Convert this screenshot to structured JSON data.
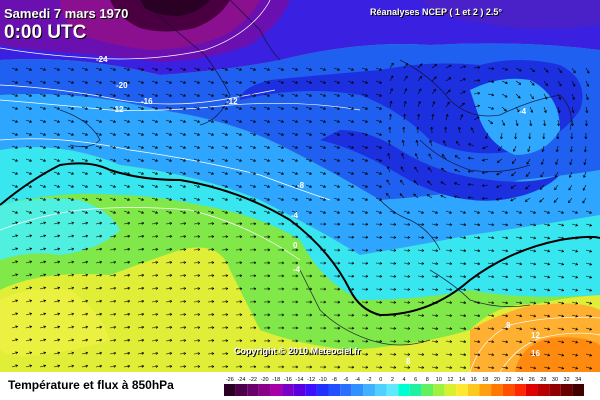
{
  "header": {
    "date": "Samedi 7 mars 1970",
    "time": "0:00 UTC",
    "source": "Réanalyses NCEP ( 1 et 2 ) 2.5°"
  },
  "copyright": "Copyright © 2010 Meteociel.fr",
  "caption": "Température et flux à 850hPa",
  "scale": {
    "labels": [
      "-26",
      "-24",
      "-22",
      "-20",
      "-18",
      "-16",
      "-14",
      "-12",
      "-10",
      "-8",
      "-6",
      "-4",
      "-2",
      "0",
      "2",
      "4",
      "6",
      "8",
      "10",
      "12",
      "14",
      "16",
      "18",
      "20",
      "22",
      "24",
      "26",
      "28",
      "30",
      "32",
      "34"
    ],
    "colors": [
      "#2a0024",
      "#4b0049",
      "#6a0069",
      "#8a0089",
      "#a700a7",
      "#7a00c8",
      "#5a00e0",
      "#3a10ff",
      "#2030ff",
      "#2050ff",
      "#2a70ff",
      "#3090ff",
      "#40b0ff",
      "#50d0ff",
      "#60e8ff",
      "#00ffd0",
      "#20f0a0",
      "#60f060",
      "#a0f040",
      "#d8f030",
      "#ffe830",
      "#ffc820",
      "#ffa010",
      "#ff7800",
      "#ff5000",
      "#ff2800",
      "#e00000",
      "#b80000",
      "#900000",
      "#680000",
      "#400000"
    ]
  },
  "isotherms": {
    "cold": [
      "-24",
      "-20",
      "-16",
      "-12",
      "-12"
    ],
    "mid": [
      "-8",
      "-4",
      "0",
      "-4",
      "-4"
    ],
    "warm": [
      "8",
      "8",
      "12",
      "16"
    ]
  },
  "colors": {
    "deep_cold": "#4a004a",
    "violet": "#7a10a0",
    "blue": "#2030e0",
    "light_blue": "#30a0ff",
    "cyan": "#30e0ff",
    "green": "#70e850",
    "yellow": "#e8e830",
    "orange": "#ffa020"
  }
}
